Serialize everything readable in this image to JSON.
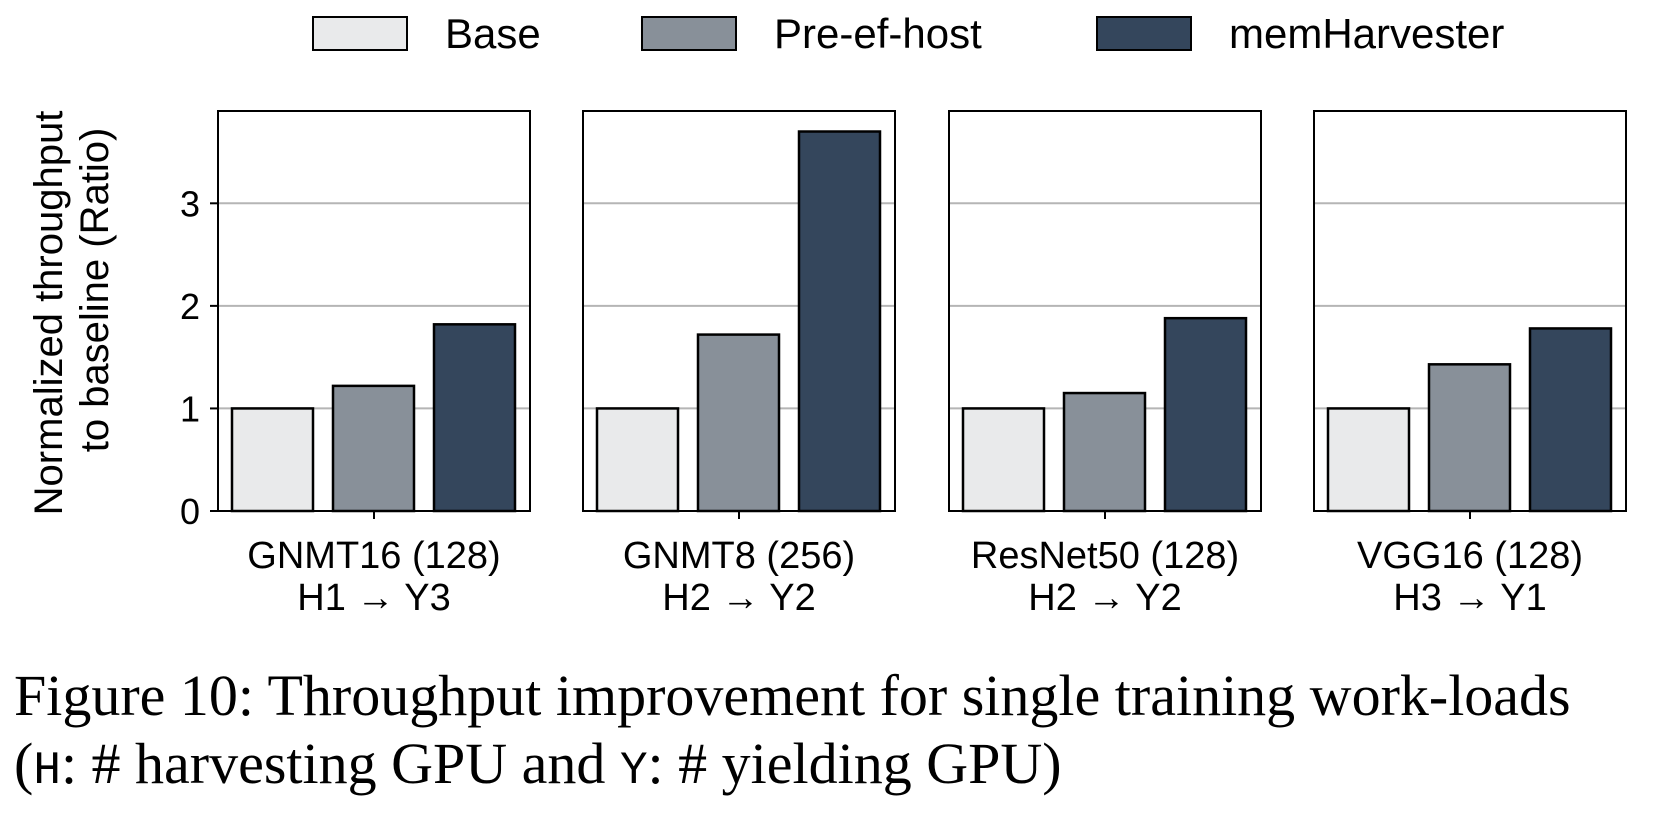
{
  "chart_data": {
    "type": "bar",
    "series": [
      {
        "name": "Base",
        "color": "#e9eaeb"
      },
      {
        "name": "Pre-ef-host",
        "color": "#889099"
      },
      {
        "name": "memHarvester",
        "color": "#34465c"
      }
    ],
    "ylabel_line1": "Normalized throughput",
    "ylabel_line2": "to baseline (Ratio)",
    "ylim": [
      0,
      3.9
    ],
    "yticks": [
      0,
      1,
      2,
      3
    ],
    "grid": true,
    "legend_position": "top",
    "panels": [
      {
        "label_line1": "GNMT16 (128)",
        "label_line2": "H1 → Y3",
        "values": [
          1.0,
          1.22,
          1.82
        ]
      },
      {
        "label_line1": "GNMT8 (256)",
        "label_line2": "H2 → Y2",
        "values": [
          1.0,
          1.72,
          3.7
        ]
      },
      {
        "label_line1": "ResNet50 (128)",
        "label_line2": "H2 → Y2",
        "values": [
          1.0,
          1.15,
          1.88
        ]
      },
      {
        "label_line1": "VGG16 (128)",
        "label_line2": "H3 → Y1",
        "values": [
          1.0,
          1.43,
          1.78
        ]
      }
    ]
  },
  "caption": {
    "part1": "Figure 10: Throughput improvement for single training work-loads (",
    "code_h": "H",
    "part2": ": # harvesting GPU and ",
    "code_y": "Y",
    "part3": ": # yielding GPU)"
  }
}
